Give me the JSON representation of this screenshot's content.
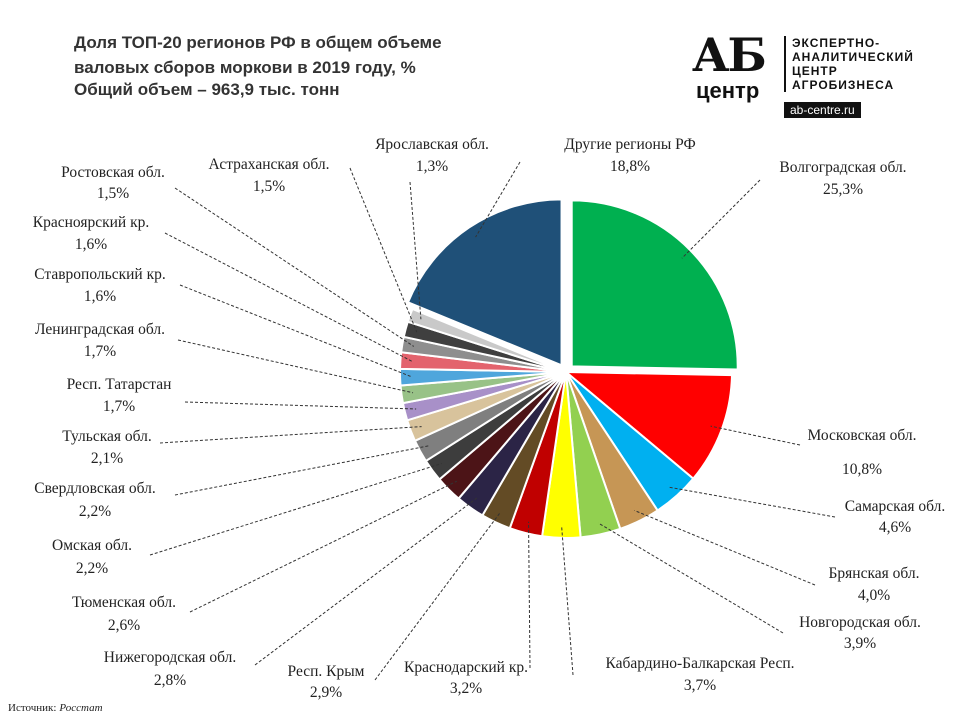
{
  "chart_data": {
    "type": "pie",
    "title": "Доля ТОП-20 регионов РФ в общем объеме валовых сборов моркови в 2019 году, %",
    "subtitle": "Общий объем – 963,9 тыс. тонн",
    "categories": [
      "Волгоградская обл.",
      "Московская обл.",
      "Самарская обл.",
      "Брянская обл.",
      "Новгородская обл.",
      "Кабардино-Балкарская Респ.",
      "Краснодарский кр.",
      "Респ. Крым",
      "Нижегородская обл.",
      "Тюменская обл.",
      "Омская обл.",
      "Свердловская обл.",
      "Тульская обл.",
      "Респ. Татарстан",
      "Ленинградская обл.",
      "Ставропольский кр.",
      "Красноярский кр.",
      "Ростовская обл.",
      "Астраханская обл.",
      "Ярославская обл.",
      "Другие регионы РФ"
    ],
    "values": [
      25.3,
      10.8,
      4.6,
      4.0,
      3.9,
      3.7,
      3.2,
      2.9,
      2.8,
      2.6,
      2.2,
      2.2,
      2.1,
      1.7,
      1.7,
      1.6,
      1.6,
      1.5,
      1.5,
      1.3,
      18.8
    ],
    "value_labels": [
      "25,3%",
      "10,8%",
      "4,6%",
      "4,0%",
      "3,9%",
      "3,7%",
      "3,2%",
      "2,9%",
      "2,8%",
      "2,6%",
      "2,2%",
      "2,2%",
      "2,1%",
      "1,7%",
      "1,7%",
      "1,6%",
      "1,6%",
      "1,5%",
      "1,5%",
      "1,3%",
      "18,8%"
    ],
    "colors": [
      "#00b050",
      "#ff0000",
      "#00b0f0",
      "#c69655",
      "#92d050",
      "#ffff00",
      "#c00000",
      "#634b25",
      "#2b2446",
      "#4c1417",
      "#3d3d3d",
      "#7f7f7f",
      "#d8c39c",
      "#a890c8",
      "#98c287",
      "#4fa6dc",
      "#e3636d",
      "#8e8e8e",
      "#3f3f3f",
      "#c9c9c9",
      "#1f5078"
    ]
  },
  "logo": {
    "mark": "АБ",
    "mark_sub": "центр",
    "lines": [
      "ЭКСПЕРТНО-",
      "АНАЛИТИЧЕСКИЙ",
      "ЦЕНТР",
      "АГРОБИЗНЕСА"
    ],
    "url": "ab-centre.ru"
  },
  "source": {
    "label": "Источник:",
    "name": "Росстат"
  }
}
